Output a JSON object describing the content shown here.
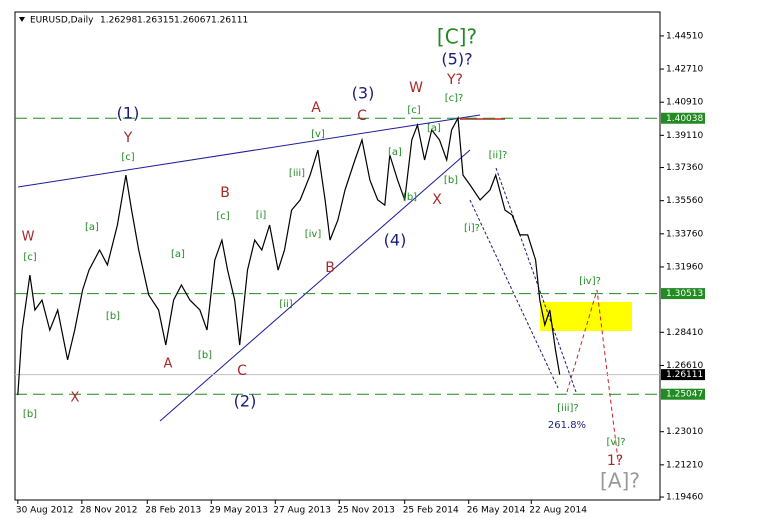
{
  "chart_data": {
    "type": "line",
    "symbol": "EURUSD,Daily",
    "ohlc": [
      1.26298,
      1.26315,
      1.26067,
      1.26111
    ],
    "color": "#000000",
    "x": [
      "2012-08-30",
      "2012-09-05",
      "2012-09-16",
      "2012-09-23",
      "2012-10-03",
      "2012-10-14",
      "2012-10-25",
      "2012-11-08",
      "2012-11-18",
      "2012-11-29",
      "2012-12-08",
      "2012-12-23",
      "2013-01-03",
      "2013-01-17",
      "2013-01-29",
      "2013-02-06",
      "2013-02-16",
      "2013-03-02",
      "2013-03-16",
      "2013-03-26",
      "2013-04-06",
      "2013-04-17",
      "2013-04-29",
      "2013-05-13",
      "2013-05-23",
      "2013-06-03",
      "2013-06-13",
      "2013-06-21",
      "2013-07-01",
      "2013-07-08",
      "2013-07-19",
      "2013-07-29",
      "2013-08-08",
      "2013-08-19",
      "2013-08-31",
      "2013-09-09",
      "2013-09-19",
      "2013-10-01",
      "2013-10-15",
      "2013-10-26",
      "2013-11-05",
      "2013-11-12",
      "2013-11-23",
      "2013-12-03",
      "2013-12-17",
      "2013-12-27",
      "2014-01-07",
      "2014-01-18",
      "2014-01-28",
      "2014-02-04",
      "2014-02-15",
      "2014-02-25",
      "2014-03-07",
      "2014-03-15",
      "2014-03-25",
      "2014-04-04",
      "2014-04-15",
      "2014-04-25",
      "2014-05-02",
      "2014-05-11",
      "2014-05-18",
      "2014-05-28",
      "2014-06-11",
      "2014-06-25",
      "2014-07-03",
      "2014-07-16",
      "2014-07-26",
      "2014-08-06",
      "2014-08-17",
      "2014-08-28",
      "2014-09-03",
      "2014-09-10",
      "2014-09-17",
      "2014-09-25",
      "2014-10-01"
    ],
    "values": [
      1.25,
      1.2853,
      1.3152,
      1.2962,
      1.3016,
      1.2853,
      1.2962,
      1.2691,
      1.2853,
      1.3071,
      1.3179,
      1.3288,
      1.3207,
      1.3424,
      1.3695,
      1.3505,
      1.3288,
      1.3044,
      1.2962,
      1.2772,
      1.3016,
      1.3098,
      1.3016,
      1.2962,
      1.2853,
      1.3234,
      1.3342,
      1.3179,
      1.3016,
      1.2772,
      1.3179,
      1.3342,
      1.3288,
      1.3424,
      1.3179,
      1.3288,
      1.3505,
      1.356,
      1.3695,
      1.3831,
      1.356,
      1.3342,
      1.3451,
      1.3614,
      1.3777,
      1.3886,
      1.3668,
      1.356,
      1.3532,
      1.3804,
      1.3668,
      1.356,
      1.3886,
      1.3967,
      1.3777,
      1.394,
      1.3886,
      1.3777,
      1.394,
      1.4005,
      1.3695,
      1.3641,
      1.356,
      1.3614,
      1.3695,
      1.3505,
      1.3478,
      1.337,
      1.337,
      1.3234,
      1.3016,
      1.2881,
      1.2962,
      1.2745,
      1.2611
    ],
    "xlim": [
      "2012-08-26",
      "2015-02-19"
    ],
    "xticks": [
      {
        "value": "2012-08-30",
        "label": "30 Aug 2012"
      },
      {
        "value": "2012-11-28",
        "label": "28 Nov 2012"
      },
      {
        "value": "2013-02-28",
        "label": "28 Feb 2013"
      },
      {
        "value": "2013-05-29",
        "label": "29 May 2013"
      },
      {
        "value": "2013-08-27",
        "label": "27 Aug 2013"
      },
      {
        "value": "2013-11-25",
        "label": "25 Nov 2013"
      },
      {
        "value": "2014-02-25",
        "label": "25 Feb 2014"
      },
      {
        "value": "2014-05-26",
        "label": "26 May 2014"
      },
      {
        "value": "2014-08-22",
        "label": "22 Aug 2014"
      }
    ],
    "ylim": [
      1.193,
      1.4581
    ],
    "yticks": [
      {
        "value": 1.4451,
        "label": "1.44510"
      },
      {
        "value": 1.4271,
        "label": "1.42710"
      },
      {
        "value": 1.4091,
        "label": "1.40910"
      },
      {
        "value": 1.3911,
        "label": "1.39110"
      },
      {
        "value": 1.3736,
        "label": "1.37360"
      },
      {
        "value": 1.3556,
        "label": "1.35560"
      },
      {
        "value": 1.3376,
        "label": "1.33760"
      },
      {
        "value": 1.3196,
        "label": "1.31960"
      },
      {
        "value": 1.2841,
        "label": "1.28410"
      },
      {
        "value": 1.2661,
        "label": "1.26610"
      },
      {
        "value": 1.2301,
        "label": "1.23010"
      },
      {
        "value": 1.2121,
        "label": "1.21210"
      },
      {
        "value": 1.1946,
        "label": "1.19460"
      }
    ],
    "hlines": [
      {
        "value": 1.40038,
        "color": "#228b22",
        "style": "dashed",
        "label_bg": "#228b22"
      },
      {
        "value": 1.30513,
        "color": "#228b22",
        "style": "dashed",
        "label_bg": "#228b22"
      },
      {
        "value": 1.25047,
        "color": "#228b22",
        "style": "dashed",
        "label_bg": "#228b22"
      },
      {
        "value": 1.26111,
        "color": "#c0c0c0",
        "style": "solid",
        "label_bg": "#000000"
      }
    ],
    "annotations": [
      {
        "text": "W",
        "color": "#a52a2a"
      },
      {
        "text": "[c]",
        "color": "#228b22"
      },
      {
        "text": "[b]",
        "color": "#228b22"
      },
      {
        "text": "X",
        "color": "#a52a2a"
      },
      {
        "text": "[a]",
        "color": "#228b22"
      },
      {
        "text": "(1)",
        "color": "#1c1c7a"
      },
      {
        "text": "Y",
        "color": "#a52a2a"
      },
      {
        "text": "[c]",
        "color": "#228b22"
      },
      {
        "text": "[b]",
        "color": "#228b22"
      },
      {
        "text": "[a]",
        "color": "#228b22"
      },
      {
        "text": "A",
        "color": "#a52a2a"
      },
      {
        "text": "B",
        "color": "#a52a2a"
      },
      {
        "text": "[c]",
        "color": "#228b22"
      },
      {
        "text": "[b]",
        "color": "#228b22"
      },
      {
        "text": "C",
        "color": "#a52a2a"
      },
      {
        "text": "(2)",
        "color": "#1c1c7a"
      },
      {
        "text": "[i]",
        "color": "#228b22"
      },
      {
        "text": "[ii]",
        "color": "#228b22"
      },
      {
        "text": "[iii]",
        "color": "#228b22"
      },
      {
        "text": "[iv]",
        "color": "#228b22"
      },
      {
        "text": "[v]",
        "color": "#228b22"
      },
      {
        "text": "B",
        "color": "#a52a2a"
      },
      {
        "text": "A",
        "color": "#a52a2a"
      },
      {
        "text": "C",
        "color": "#a52a2a"
      },
      {
        "text": "(3)",
        "color": "#1c1c7a"
      },
      {
        "text": "(4)",
        "color": "#1c1c7a"
      },
      {
        "text": "[a]",
        "color": "#228b22"
      },
      {
        "text": "[b]",
        "color": "#228b22"
      },
      {
        "text": "[c]",
        "color": "#228b22"
      },
      {
        "text": "W",
        "color": "#a52a2a"
      },
      {
        "text": "[a]",
        "color": "#228b22"
      },
      {
        "text": "[b]",
        "color": "#228b22"
      },
      {
        "text": "X",
        "color": "#a52a2a"
      },
      {
        "text": "[C]?",
        "color": "#228b22"
      },
      {
        "text": "(5)?",
        "color": "#1c1c7a"
      },
      {
        "text": "Y?",
        "color": "#a52a2a"
      },
      {
        "text": "[c]?",
        "color": "#228b22"
      },
      {
        "text": "[ii]?",
        "color": "#228b22"
      },
      {
        "text": "[i]?",
        "color": "#228b22"
      },
      {
        "text": "[iii]?",
        "color": "#228b22"
      },
      {
        "text": "261.8%",
        "color": "#1c1c7a"
      },
      {
        "text": "[iv]?",
        "color": "#228b22"
      },
      {
        "text": "[v]?",
        "color": "#228b22"
      },
      {
        "text": "1?",
        "color": "#a52a2a"
      },
      {
        "text": "[A]?",
        "color": "#999999"
      }
    ]
  }
}
